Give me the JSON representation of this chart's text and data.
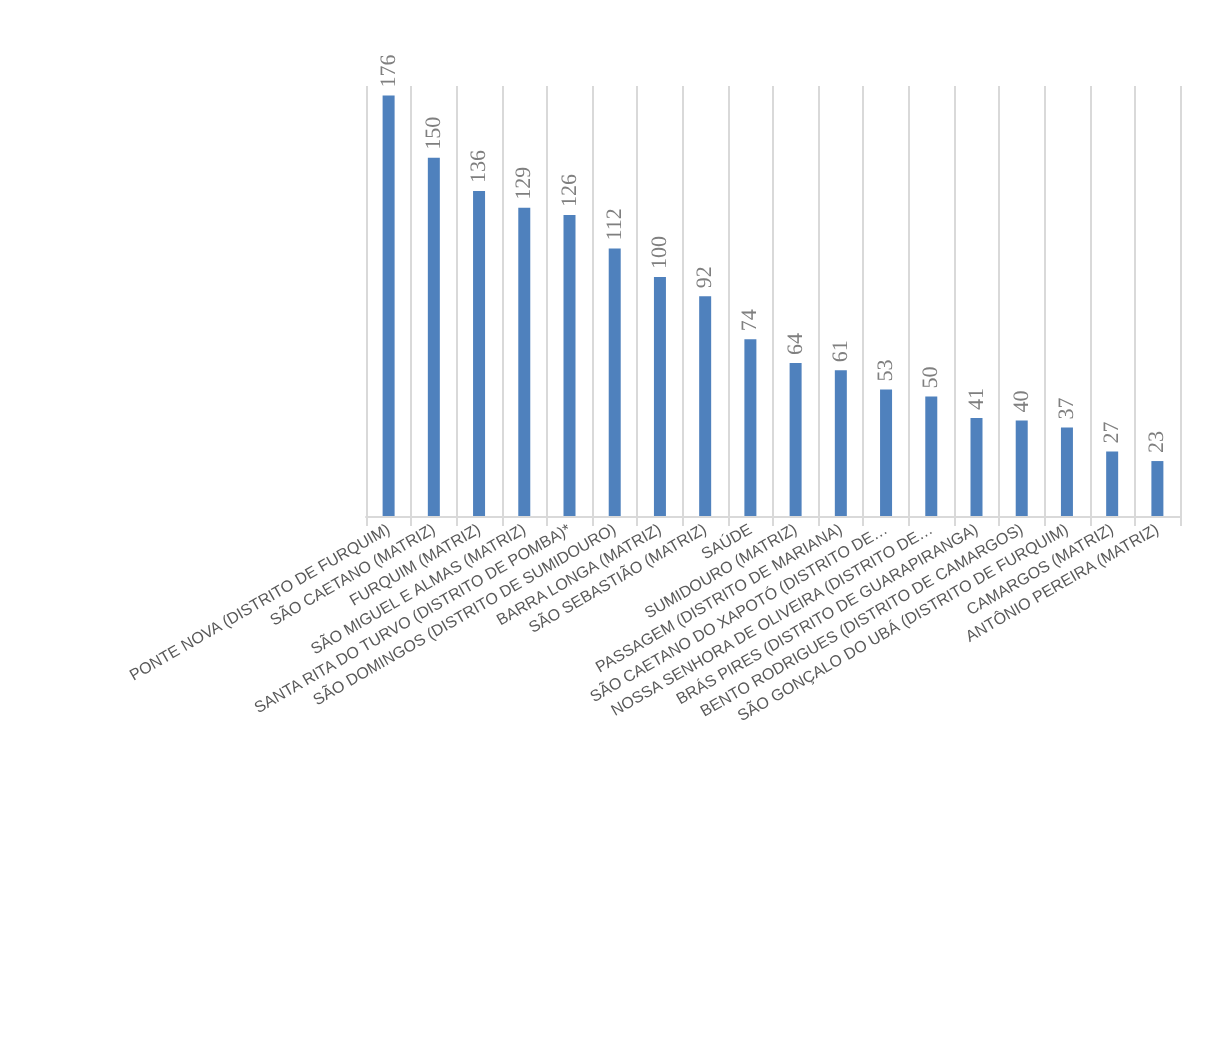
{
  "chart_data": {
    "type": "bar",
    "categories": [
      "PONTE NOVA (DISTRITO DE FURQUIM)",
      "SÃO CAETANO (MATRIZ)",
      "FURQUIM (MATRIZ)",
      "SÃO MIGUEL E ALMAS (MATRIZ)",
      "SANTA RITA DO TURVO (DISTRITO DE POMBA)*",
      "SÃO DOMINGOS (DISTRITO DE SUMIDOURO)",
      "BARRA LONGA (MATRIZ)",
      "SÃO SEBASTIÃO (MATRIZ)",
      "SAÚDE",
      "SUMIDOURO (MATRIZ)",
      "PASSAGEM (DISTRITO DE MARIANA)",
      "SÃO CAETANO DO XAPOTÓ (DISTRITO DE…",
      "NOSSA SENHORA DE OLIVEIRA (DISTRITO DE…",
      "BRÁS PIRES (DISTRITO DE GUARAPIRANGA)",
      "BENTO RODRIGUES (DISTRITO DE CAMARGOS)",
      "SÃO GONÇALO DO UBÁ (DISTRITO DE FURQUIM)",
      "CAMARGOS (MATRIZ)",
      "ANTÔNIO PEREIRA (MATRIZ)"
    ],
    "values": [
      176,
      150,
      136,
      129,
      126,
      112,
      100,
      92,
      74,
      64,
      61,
      53,
      50,
      41,
      40,
      37,
      27,
      23
    ],
    "color": "#4f81bd",
    "data_labels": true,
    "grid": "x"
  }
}
